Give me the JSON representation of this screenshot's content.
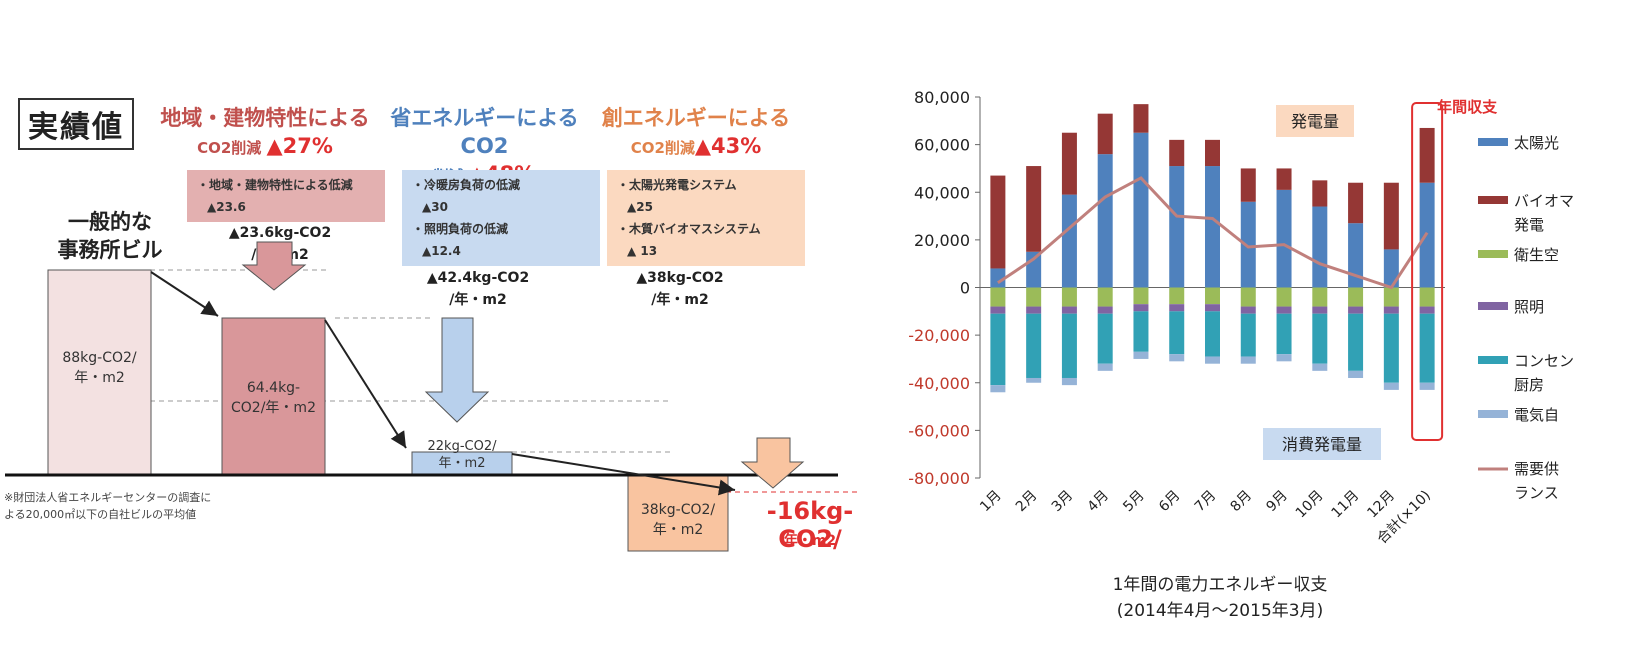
{
  "left": {
    "title": "実績値",
    "general_building": [
      "一般的な",
      "事務所ビル"
    ],
    "groups": [
      {
        "color": "#c0504d",
        "box_bg": "#e3b0b0",
        "header_l1": "地域・建物特性による",
        "header_l2a": "CO2削減 ",
        "header_l2b": "▲27%",
        "items": [
          {
            "label": "・地域・建物特性による低減",
            "value": "▲23.6"
          }
        ],
        "total_l1": "▲23.6kg-CO2",
        "total_l2": "/年・m2"
      },
      {
        "color": "#4f81bd",
        "box_bg": "#c8daf0",
        "header_l1": "省エネルギーによるCO2",
        "header_l2a": "削減 ",
        "header_l2b": "▲48%",
        "items": [
          {
            "label": "・冷暖房負荷の低減",
            "value": "▲30"
          },
          {
            "label": "・照明負荷の低減",
            "value": "▲12.4"
          }
        ],
        "total_l1": "▲42.4kg-CO2",
        "total_l2": "/年・m2"
      },
      {
        "color": "#e0824a",
        "box_bg": "#fbd9c0",
        "header_l1": "創エネルギーによる",
        "header_l2a": "CO2削減",
        "header_l2b": "▲43%",
        "items": [
          {
            "label": "・太陽光発電システム",
            "value": "▲25"
          },
          {
            "label": "・木質バイオマスシステム",
            "value": "▲ 13"
          }
        ],
        "total_l1": "▲38kg-CO2",
        "total_l2": "/年・m2"
      }
    ],
    "bars": [
      {
        "l1": "88kg-CO2/",
        "l2": "年・m2"
      },
      {
        "l1": "64.4kg-",
        "l2": "CO2/年・m2"
      },
      {
        "l1": "22kg-CO2/",
        "l2": "年・m2"
      },
      {
        "l1": "38kg-CO2/",
        "l2": "年・m2"
      }
    ],
    "result_l1": "-16kg-CO2/",
    "result_l2": "年・m2",
    "note_l1": "※財団法人省エネルギーセンターの調査に",
    "note_l2": "よる20,000㎡以下の自社ビルの平均値"
  },
  "chart_data": {
    "type": "bar",
    "stacked": true,
    "categories": [
      "1月",
      "2月",
      "3月",
      "4月",
      "5月",
      "6月",
      "7月",
      "8月",
      "9月",
      "10月",
      "11月",
      "12月",
      "合計(×10)"
    ],
    "ylim": [
      -80000,
      80000
    ],
    "yticks": [
      "80,000",
      "60,000",
      "40,000",
      "20,000",
      "0",
      "-20,000",
      "-40,000",
      "-60,000",
      "-80,000"
    ],
    "xlabel_l1": "1年間の電力エネルギー収支",
    "xlabel_l2": "(2014年4月～2015年3月)",
    "grid": false,
    "series": [
      {
        "name": "太陽光",
        "color": "#4f81bd",
        "values": [
          8000,
          15000,
          39000,
          56000,
          65000,
          51000,
          51000,
          36000,
          41000,
          34000,
          27000,
          16000,
          44000
        ]
      },
      {
        "name": "バイオマス発電",
        "color": "#953735",
        "values": [
          39000,
          36000,
          26000,
          17000,
          12000,
          11000,
          11000,
          14000,
          9000,
          11000,
          17000,
          28000,
          23000
        ]
      },
      {
        "name": "衛生空調",
        "color": "#9bbb59",
        "values": [
          -8000,
          -8000,
          -8000,
          -8000,
          -7000,
          -7000,
          -7000,
          -8000,
          -8000,
          -8000,
          -8000,
          -8000,
          -8000
        ]
      },
      {
        "name": "照明",
        "color": "#8064a2",
        "values": [
          -3000,
          -3000,
          -3000,
          -3000,
          -3000,
          -3000,
          -3000,
          -3000,
          -3000,
          -3000,
          -3000,
          -3000,
          -3000
        ]
      },
      {
        "name": "コンセント・厨房",
        "color": "#31a1b5",
        "values": [
          -30000,
          -27000,
          -27000,
          -21000,
          -17000,
          -18000,
          -19000,
          -18000,
          -17000,
          -21000,
          -24000,
          -29000,
          -29000
        ]
      },
      {
        "name": "電気自動車",
        "color": "#95b3d7",
        "values": [
          -3000,
          -2000,
          -3000,
          -3000,
          -3000,
          -3000,
          -3000,
          -3000,
          -3000,
          -3000,
          -3000,
          -3000,
          -3000
        ]
      }
    ],
    "line": {
      "name": "需要供給バランス",
      "color": "#c0807d",
      "values": [
        2000,
        12000,
        25000,
        38000,
        46000,
        30000,
        29000,
        17000,
        18000,
        10000,
        5000,
        0,
        23000
      ]
    },
    "legend": [
      "太陽光",
      "バイオマス発電",
      "衛生空調",
      "照明",
      "コンセント・厨房",
      "電気自動車",
      "需要供給バランス"
    ],
    "legend_display": [
      [
        "太陽光"
      ],
      [
        "バイオマ",
        "発電"
      ],
      [
        "衛生空"
      ],
      [
        "照明"
      ],
      [
        "コンセン",
        "厨房"
      ],
      [
        "電気自"
      ],
      [
        "需要供",
        "ランス"
      ]
    ],
    "annotations": {
      "generation": "発電量",
      "consumption": "消費発電量",
      "annual": "年間収支"
    }
  }
}
